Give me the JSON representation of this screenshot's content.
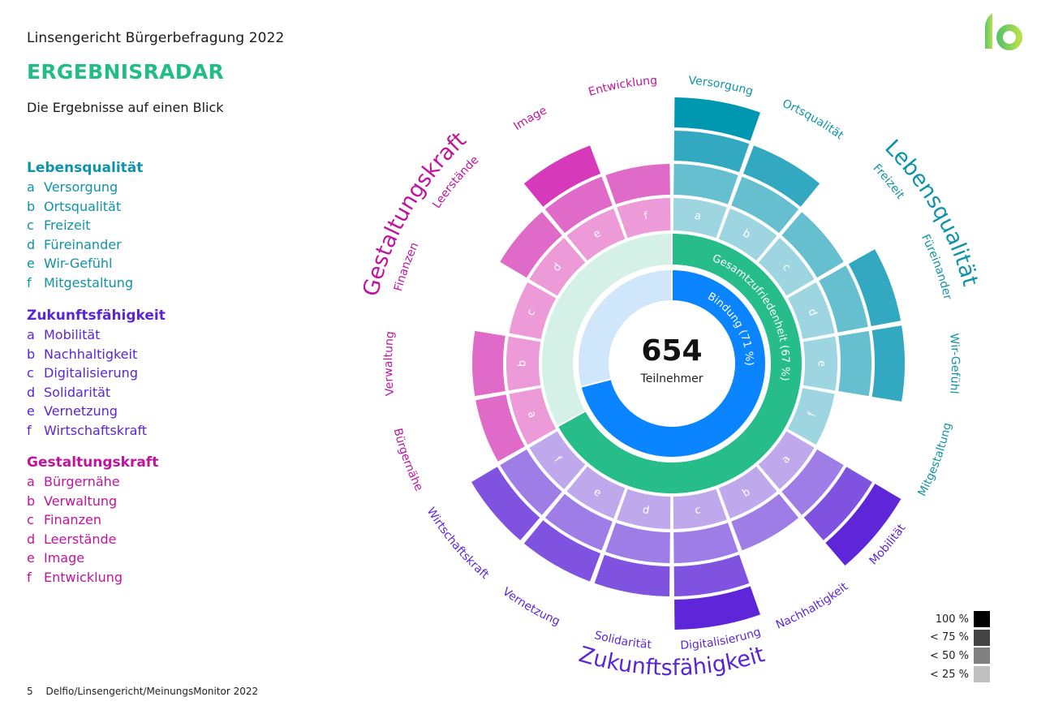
{
  "header": {
    "supertitle": "Linsengericht Bürgerbefragung 2022",
    "title": "ERGEBNISRADAR",
    "subtitle": "Die Ergebnisse auf einen Blick"
  },
  "logo": {
    "icon": "io-logo-icon",
    "text": "io"
  },
  "legend": [
    {
      "title": "Lebensqualität",
      "color": "#0f93a8",
      "items": [
        {
          "letter": "a",
          "label": "Versorgung"
        },
        {
          "letter": "b",
          "label": "Ortsqualität"
        },
        {
          "letter": "c",
          "label": "Freizeit"
        },
        {
          "letter": "d",
          "label": "Füreinander"
        },
        {
          "letter": "e",
          "label": "Wir-Gefühl"
        },
        {
          "letter": "f",
          "label": "Mitgestaltung"
        }
      ]
    },
    {
      "title": "Zukunftsfähigkeit",
      "color": "#5b25d6",
      "items": [
        {
          "letter": "a",
          "label": "Mobilität"
        },
        {
          "letter": "b",
          "label": "Nachhaltigkeit"
        },
        {
          "letter": "c",
          "label": "Digitalisierung"
        },
        {
          "letter": "d",
          "label": "Solidarität"
        },
        {
          "letter": "e",
          "label": "Vernetzung"
        },
        {
          "letter": "f",
          "label": "Wirtschaftskraft"
        }
      ]
    },
    {
      "title": "Gestaltungskraft",
      "color": "#c0139e",
      "items": [
        {
          "letter": "a",
          "label": "Bürgernähe"
        },
        {
          "letter": "b",
          "label": "Verwaltung"
        },
        {
          "letter": "c",
          "label": "Finanzen"
        },
        {
          "letter": "d",
          "label": "Leerstände"
        },
        {
          "letter": "e",
          "label": "Image"
        },
        {
          "letter": "f",
          "label": "Entwicklung"
        }
      ]
    }
  ],
  "scale": [
    {
      "label": "100 %",
      "color": "#000000"
    },
    {
      "label": "< 75 %",
      "color": "#444444"
    },
    {
      "label": "< 50 %",
      "color": "#808080"
    },
    {
      "label": "< 25 %",
      "color": "#c0c0c0"
    }
  ],
  "footer": {
    "page": "5",
    "text": "Delfio/Linsengericht/MeinungsMonitor 2022"
  },
  "chart_data": {
    "type": "radial-segmented",
    "title": "ERGEBNISRADAR",
    "center": {
      "value": "654",
      "label": "Teilnehmer"
    },
    "inner_rings": [
      {
        "name": "Bindung",
        "label": "Bindung (71 %)",
        "percent": 71,
        "color": "#0a84ff",
        "bg": "#cfe6fb"
      },
      {
        "name": "Gesamtzufriedenheit",
        "label": "Gesamtzufriedenheit (67 %)",
        "percent": 67,
        "color": "#27bd8a",
        "bg": "#d5f0e6"
      }
    ],
    "level_legend": [
      "< 25 %",
      "< 50 %",
      "< 75 %",
      "100 %"
    ],
    "groups": [
      {
        "name": "Lebensqualität",
        "text_color": "#0f93a8",
        "level_colors": [
          "#9dd6e0",
          "#66bfcf",
          "#33a9c1",
          "#0097b0"
        ],
        "segments": [
          {
            "letter": "a",
            "label": "Versorgung",
            "level": 4
          },
          {
            "letter": "b",
            "label": "Ortsqualität",
            "level": 3
          },
          {
            "letter": "c",
            "label": "Freizeit",
            "level": 2
          },
          {
            "letter": "d",
            "label": "Füreinander",
            "level": 3
          },
          {
            "letter": "e",
            "label": "Wir-Gefühl",
            "level": 3
          },
          {
            "letter": "f",
            "label": "Mitgestaltung",
            "level": 1
          }
        ]
      },
      {
        "name": "Zukunftsfähigkeit",
        "text_color": "#5b25d6",
        "level_colors": [
          "#bfa8ec",
          "#9f7de6",
          "#8052e0",
          "#5f25d8"
        ],
        "segments": [
          {
            "letter": "a",
            "label": "Mobilität",
            "level": 4
          },
          {
            "letter": "b",
            "label": "Nachhaltigkeit",
            "level": 2
          },
          {
            "letter": "c",
            "label": "Digitalisierung",
            "level": 4
          },
          {
            "letter": "d",
            "label": "Solidarität",
            "level": 3
          },
          {
            "letter": "e",
            "label": "Vernetzung",
            "level": 3
          },
          {
            "letter": "f",
            "label": "Wirtschaftskraft",
            "level": 3
          }
        ]
      },
      {
        "name": "Gestaltungskraft",
        "text_color": "#c0139e",
        "level_colors": [
          "#ec9ad8",
          "#e06ac8",
          "#d639ba",
          "#c0139e"
        ],
        "segments": [
          {
            "letter": "a",
            "label": "Bürgernähe",
            "level": 2
          },
          {
            "letter": "b",
            "label": "Verwaltung",
            "level": 2
          },
          {
            "letter": "c",
            "label": "Finanzen",
            "level": 1
          },
          {
            "letter": "d",
            "label": "Leerstände",
            "level": 2
          },
          {
            "letter": "e",
            "label": "Image",
            "level": 3
          },
          {
            "letter": "f",
            "label": "Entwicklung",
            "level": 2
          }
        ]
      }
    ]
  }
}
